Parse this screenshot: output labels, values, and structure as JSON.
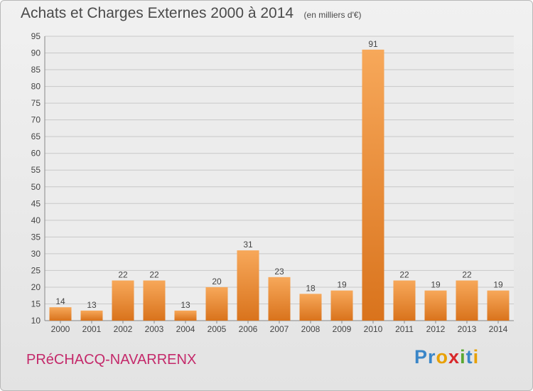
{
  "header": {
    "title": "Achats et Charges Externes 2000 à 2014",
    "unit": "(en milliers d'€)"
  },
  "footer": {
    "place": "PRéCHACQ-NAVARRENX",
    "brand": {
      "letters": [
        "P",
        "r",
        "o",
        "x",
        "i",
        "t",
        "i"
      ],
      "colors": [
        "#3a86c8",
        "#3a86c8",
        "#e8a000",
        "#d8282b",
        "#5aa832",
        "#3a86c8",
        "#e8a000"
      ]
    }
  },
  "colors": {
    "bar_light": "#f7a85a",
    "bar_dark": "#d9731c",
    "grid": "#c8c8c8",
    "axis_text": "#444444"
  },
  "chart_data": {
    "type": "bar",
    "title": "Achats et Charges Externes 2000 à 2014",
    "subtitle": "(en milliers d'€)",
    "xlabel": "",
    "ylabel": "",
    "categories": [
      "2000",
      "2001",
      "2002",
      "2003",
      "2004",
      "2005",
      "2006",
      "2007",
      "2008",
      "2009",
      "2010",
      "2011",
      "2012",
      "2013",
      "2014"
    ],
    "values": [
      14,
      13,
      22,
      22,
      13,
      20,
      31,
      23,
      18,
      19,
      91,
      22,
      19,
      22,
      19
    ],
    "ylim": [
      10,
      95
    ],
    "yticks": [
      10,
      15,
      20,
      25,
      30,
      35,
      40,
      45,
      50,
      55,
      60,
      65,
      70,
      75,
      80,
      85,
      90,
      95
    ],
    "grid": true,
    "legend": "none"
  }
}
